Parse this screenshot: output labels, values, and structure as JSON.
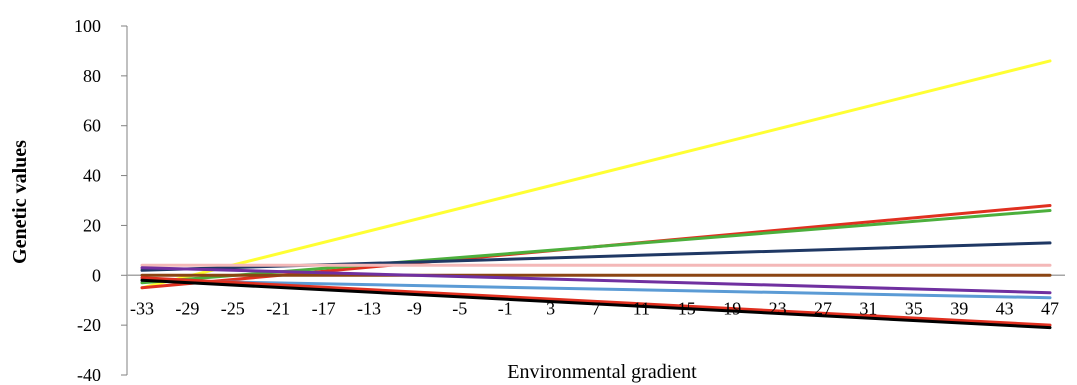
{
  "chart_data": {
    "type": "line",
    "title": "",
    "xlabel": "Environmental gradient",
    "ylabel": "Genetic values",
    "x_ticks": [
      -33,
      -29,
      -25,
      -21,
      -17,
      -13,
      -9,
      -5,
      -1,
      3,
      7,
      11,
      15,
      19,
      23,
      27,
      31,
      35,
      39,
      43,
      47
    ],
    "xlim": [
      -33,
      47
    ],
    "ylim": [
      -40,
      100
    ],
    "y_ticks": [
      -40,
      -20,
      0,
      20,
      40,
      60,
      80,
      100
    ],
    "grid": false,
    "legend": "none",
    "series": [
      {
        "color": "#ffff33",
        "points": [
          [
            -33,
            -5
          ],
          [
            47,
            86
          ]
        ]
      },
      {
        "color": "#e03020",
        "points": [
          [
            -33,
            -5
          ],
          [
            47,
            28
          ]
        ]
      },
      {
        "color": "#4caf3c",
        "points": [
          [
            -33,
            -3
          ],
          [
            47,
            26
          ]
        ]
      },
      {
        "color": "#1f3864",
        "points": [
          [
            -33,
            2
          ],
          [
            47,
            13
          ]
        ]
      },
      {
        "color": "#f4b8b8",
        "points": [
          [
            -33,
            4
          ],
          [
            47,
            4
          ]
        ]
      },
      {
        "color": "#8b4513",
        "points": [
          [
            -33,
            0
          ],
          [
            47,
            0
          ]
        ]
      },
      {
        "color": "#7030a0",
        "points": [
          [
            -33,
            3
          ],
          [
            47,
            -7
          ]
        ]
      },
      {
        "color": "#5b9bd5",
        "points": [
          [
            -33,
            -2
          ],
          [
            47,
            -9
          ]
        ]
      },
      {
        "color": "#e03020",
        "points": [
          [
            -33,
            -1
          ],
          [
            47,
            -20
          ]
        ]
      },
      {
        "color": "#000000",
        "points": [
          [
            -33,
            -2
          ],
          [
            47,
            -21
          ]
        ]
      }
    ]
  }
}
